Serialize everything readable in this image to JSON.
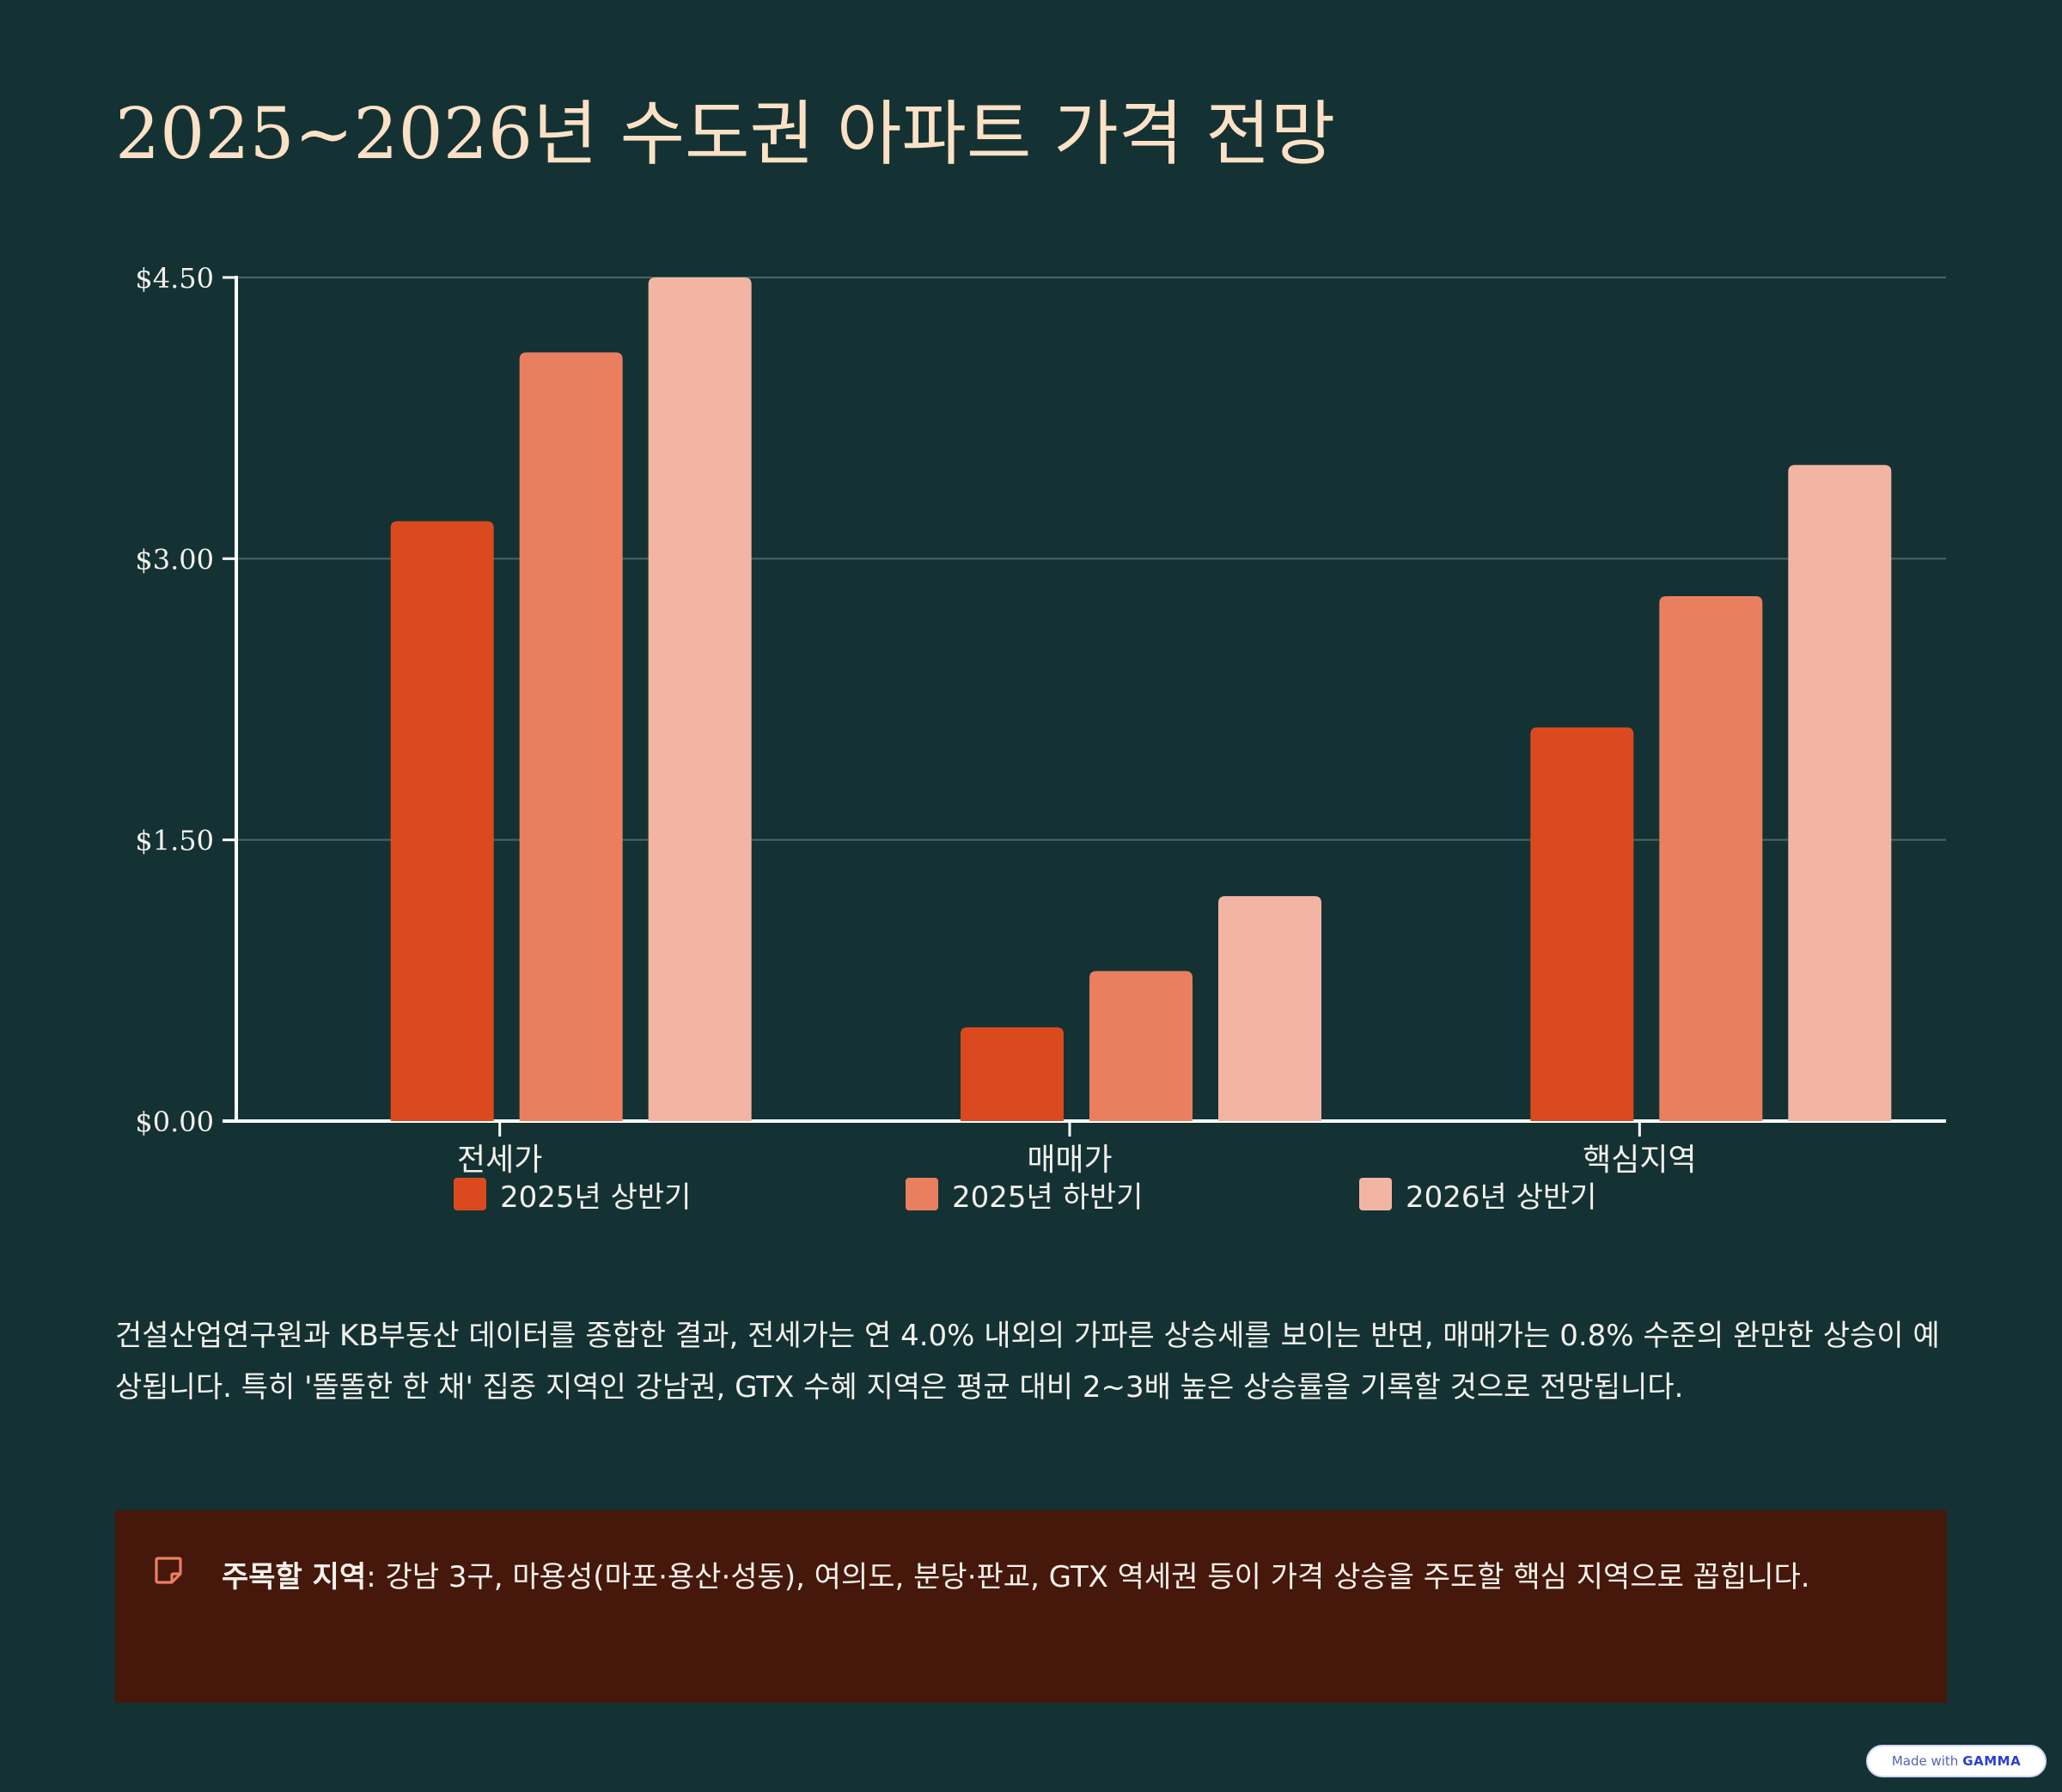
{
  "title": "2025~2026년 수도권 아파트 가격 전망",
  "colors": {
    "background": "#143233",
    "title": "#fde1c6",
    "series": [
      "#db4a1e",
      "#ea7f60",
      "#f3b5a3"
    ],
    "callout_bg": "#45180b"
  },
  "chart_data": {
    "type": "bar",
    "title": "",
    "xlabel": "",
    "ylabel": "",
    "categories": [
      "전세가",
      "매매가",
      "핵심지역"
    ],
    "series": [
      {
        "name": "2025년 상반기",
        "values": [
          3.2,
          0.5,
          2.1
        ]
      },
      {
        "name": "2025년 하반기",
        "values": [
          4.1,
          0.8,
          2.8
        ]
      },
      {
        "name": "2026년 상반기",
        "values": [
          4.5,
          1.2,
          3.5
        ]
      }
    ],
    "ylim": [
      0,
      4.5
    ],
    "yticks": [
      {
        "value": 0,
        "label": "$0.00"
      },
      {
        "value": 1.5,
        "label": "$1.50"
      },
      {
        "value": 3,
        "label": "$3.00"
      },
      {
        "value": 4.5,
        "label": "$4.50"
      }
    ],
    "grid": true,
    "legend_position": "bottom"
  },
  "description": "건설산업연구원과 KB부동산 데이터를 종합한 결과, 전세가는 연 4.0% 내외의 가파른 상승세를 보이는 반면, 매매가는 0.8% 수준의 완만한 상승이 예상됩니다. 특히 '똘똘한 한 채' 집중 지역인 강남권, GTX 수혜 지역은 평균 대비 2~3배 높은 상승률을 기록할 것으로 전망됩니다.",
  "callout": {
    "icon": "note-icon",
    "label": "주목할 지역",
    "text": ": 강남 3구, 마용성(마포·용산·성동), 여의도, 분당·판교, GTX 역세권 등이 가격 상승을 주도할 핵심 지역으로 꼽힙니다."
  },
  "badge": {
    "prefix": "Made with",
    "brand": "GAMMA"
  }
}
